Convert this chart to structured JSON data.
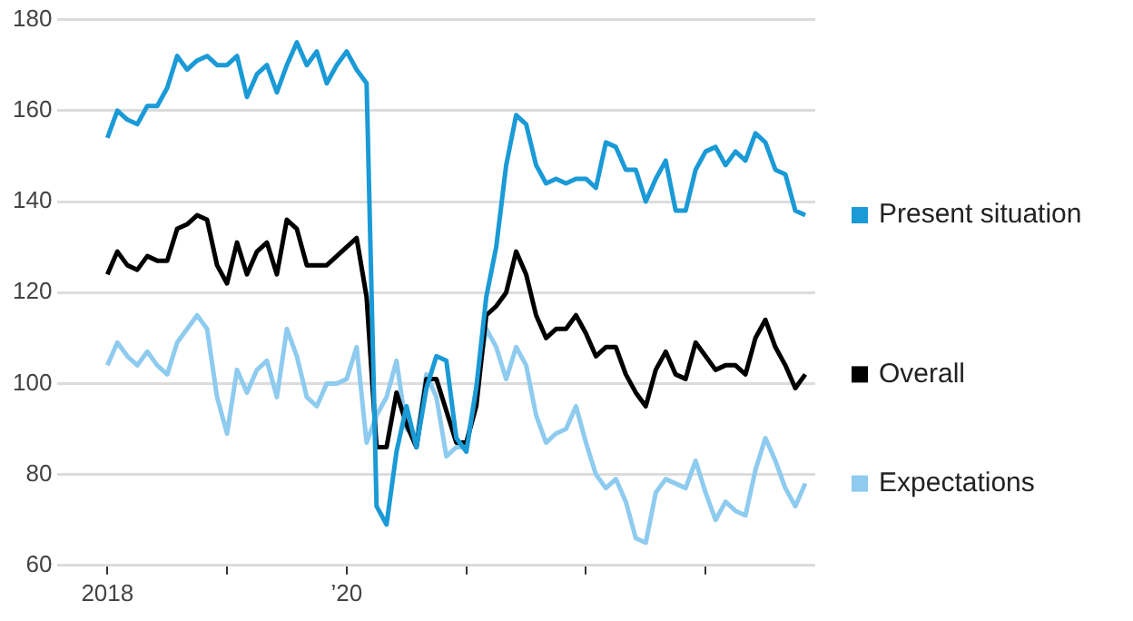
{
  "chart_data": {
    "type": "line",
    "x": [
      "2018-01",
      "2018-02",
      "2018-03",
      "2018-04",
      "2018-05",
      "2018-06",
      "2018-07",
      "2018-08",
      "2018-09",
      "2018-10",
      "2018-11",
      "2018-12",
      "2019-01",
      "2019-02",
      "2019-03",
      "2019-04",
      "2019-05",
      "2019-06",
      "2019-07",
      "2019-08",
      "2019-09",
      "2019-10",
      "2019-11",
      "2019-12",
      "2020-01",
      "2020-02",
      "2020-03",
      "2020-04",
      "2020-05",
      "2020-06",
      "2020-07",
      "2020-08",
      "2020-09",
      "2020-10",
      "2020-11",
      "2020-12",
      "2021-01",
      "2021-02",
      "2021-03",
      "2021-04",
      "2021-05",
      "2021-06",
      "2021-07",
      "2021-08",
      "2021-09",
      "2021-10",
      "2021-11",
      "2021-12",
      "2022-01",
      "2022-02",
      "2022-03",
      "2022-04",
      "2022-05",
      "2022-06",
      "2022-07",
      "2022-08",
      "2022-09",
      "2022-10",
      "2022-11",
      "2022-12",
      "2023-01",
      "2023-02",
      "2023-03",
      "2023-04",
      "2023-05",
      "2023-06",
      "2023-07",
      "2023-08",
      "2023-09",
      "2023-10",
      "2023-11"
    ],
    "series": [
      {
        "name": "Present situation",
        "color": "#1a9ad6",
        "values": [
          154,
          160,
          158,
          157,
          161,
          161,
          165,
          172,
          169,
          171,
          172,
          170,
          170,
          172,
          163,
          168,
          170,
          164,
          170,
          175,
          170,
          173,
          166,
          170,
          173,
          169,
          166,
          73,
          69,
          85,
          95,
          86,
          99,
          106,
          105,
          88,
          85,
          99,
          119,
          130,
          148,
          159,
          157,
          148,
          144,
          145,
          144,
          145,
          145,
          143,
          153,
          152,
          147,
          147,
          140,
          145,
          149,
          138,
          138,
          147,
          151,
          152,
          148,
          151,
          149,
          155,
          153,
          147,
          146,
          138,
          137
        ]
      },
      {
        "name": "Overall",
        "color": "#000000",
        "values": [
          124,
          129,
          126,
          125,
          128,
          127,
          127,
          134,
          135,
          137,
          136,
          126,
          122,
          131,
          124,
          129,
          131,
          124,
          136,
          134,
          126,
          126,
          126,
          128,
          130,
          132,
          119,
          86,
          86,
          98,
          91,
          86,
          101,
          101,
          94,
          87,
          87,
          95,
          115,
          117,
          120,
          129,
          124,
          115,
          110,
          112,
          112,
          115,
          111,
          106,
          108,
          108,
          102,
          98,
          95,
          103,
          107,
          102,
          101,
          109,
          106,
          103,
          104,
          104,
          102,
          110,
          114,
          108,
          104,
          99,
          102
        ]
      },
      {
        "name": "Expectations",
        "color": "#8ecbef",
        "values": [
          104,
          109,
          106,
          104,
          107,
          104,
          102,
          109,
          112,
          115,
          112,
          97,
          89,
          103,
          98,
          103,
          105,
          97,
          112,
          106,
          97,
          95,
          100,
          100,
          101,
          108,
          87,
          93,
          97,
          105,
          90,
          88,
          102,
          97,
          84,
          86,
          86,
          99,
          112,
          108,
          101,
          108,
          104,
          93,
          87,
          89,
          90,
          95,
          87,
          80,
          77,
          79,
          74,
          66,
          65,
          76,
          79,
          78,
          77,
          83,
          76,
          70,
          74,
          72,
          71,
          81,
          88,
          83,
          77,
          73,
          78
        ]
      }
    ],
    "xlim": [
      "2017-08",
      "2023-12"
    ],
    "xticks": [
      {
        "value": "2018-01",
        "label": "2018"
      },
      {
        "value": "2019-01",
        "label": null
      },
      {
        "value": "2020-01",
        "label": "’20"
      },
      {
        "value": "2021-01",
        "label": null
      },
      {
        "value": "2022-01",
        "label": null
      },
      {
        "value": "2023-01",
        "label": null
      }
    ],
    "ylim": [
      60,
      180
    ],
    "yticks": [
      60,
      80,
      100,
      120,
      140,
      160,
      180
    ],
    "grid": "y",
    "legend": "right",
    "marker": "none"
  }
}
